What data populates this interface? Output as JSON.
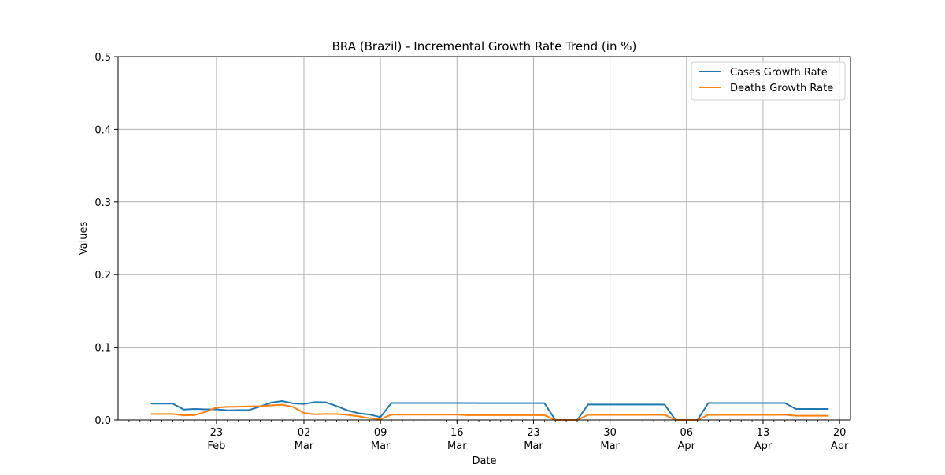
{
  "chart_data": {
    "type": "line",
    "title": "BRA (Brazil) - Incremental Growth Rate Trend (in %)",
    "xlabel": "Date",
    "ylabel": "Values",
    "ylim": [
      0,
      0.5
    ],
    "xlim": [
      "2020-02-14",
      "2020-04-21"
    ],
    "y_ticks": [
      "0.0",
      "0.1",
      "0.2",
      "0.3",
      "0.4",
      "0.5"
    ],
    "x_ticks": [
      {
        "date": "2020-02-23",
        "day": "23",
        "month": "Feb"
      },
      {
        "date": "2020-03-02",
        "day": "02",
        "month": "Mar"
      },
      {
        "date": "2020-03-09",
        "day": "09",
        "month": "Mar"
      },
      {
        "date": "2020-03-16",
        "day": "16",
        "month": "Mar"
      },
      {
        "date": "2020-03-23",
        "day": "23",
        "month": "Mar"
      },
      {
        "date": "2020-03-30",
        "day": "30",
        "month": "Mar"
      },
      {
        "date": "2020-04-06",
        "day": "06",
        "month": "Apr"
      },
      {
        "date": "2020-04-13",
        "day": "13",
        "month": "Apr"
      },
      {
        "date": "2020-04-20",
        "day": "20",
        "month": "Apr"
      }
    ],
    "grid": true,
    "legend_position": "top-right",
    "x": [
      "2020-02-17",
      "2020-02-18",
      "2020-02-19",
      "2020-02-20",
      "2020-02-21",
      "2020-02-22",
      "2020-02-23",
      "2020-02-24",
      "2020-02-25",
      "2020-02-26",
      "2020-02-27",
      "2020-02-28",
      "2020-02-29",
      "2020-03-01",
      "2020-03-02",
      "2020-03-03",
      "2020-03-04",
      "2020-03-05",
      "2020-03-06",
      "2020-03-07",
      "2020-03-08",
      "2020-03-09",
      "2020-03-10",
      "2020-03-11",
      "2020-03-12",
      "2020-03-13",
      "2020-03-14",
      "2020-03-15",
      "2020-03-16",
      "2020-03-17",
      "2020-03-18",
      "2020-03-19",
      "2020-03-20",
      "2020-03-21",
      "2020-03-22",
      "2020-03-23",
      "2020-03-24",
      "2020-03-25",
      "2020-03-26",
      "2020-03-27",
      "2020-03-28",
      "2020-03-29",
      "2020-03-30",
      "2020-03-31",
      "2020-04-01",
      "2020-04-02",
      "2020-04-03",
      "2020-04-04",
      "2020-04-05",
      "2020-04-06",
      "2020-04-07",
      "2020-04-08",
      "2020-04-09",
      "2020-04-10",
      "2020-04-11",
      "2020-04-12",
      "2020-04-13",
      "2020-04-14",
      "2020-04-15",
      "2020-04-16",
      "2020-04-17",
      "2020-04-18",
      "2020-04-19"
    ],
    "series": [
      {
        "name": "Cases Growth Rate",
        "color": "#1f77b4",
        "values": [
          0.0225,
          0.0224,
          0.0224,
          0.0144,
          0.0152,
          0.0146,
          0.0146,
          0.0133,
          0.0135,
          0.0137,
          0.0186,
          0.0238,
          0.026,
          0.0228,
          0.022,
          0.0245,
          0.0242,
          0.019,
          0.0131,
          0.0092,
          0.0075,
          0.004,
          0.0233,
          0.0233,
          0.0233,
          0.0233,
          0.0233,
          0.0233,
          0.0233,
          0.0233,
          0.0231,
          0.0231,
          0.0231,
          0.0231,
          0.0231,
          0.0231,
          0.0231,
          0.0,
          0.0,
          0.0,
          0.0213,
          0.0213,
          0.0213,
          0.0213,
          0.0213,
          0.0213,
          0.0213,
          0.0211,
          0.0,
          0.0,
          0.0,
          0.0233,
          0.0233,
          0.0233,
          0.0233,
          0.0233,
          0.0233,
          0.0233,
          0.0233,
          0.0152,
          0.0152,
          0.0152,
          0.0152
        ]
      },
      {
        "name": "Deaths Growth Rate",
        "color": "#ff7f0e",
        "values": [
          0.0083,
          0.0083,
          0.0082,
          0.0063,
          0.0067,
          0.0112,
          0.0171,
          0.018,
          0.0183,
          0.0186,
          0.019,
          0.02,
          0.021,
          0.018,
          0.0095,
          0.0079,
          0.0082,
          0.0083,
          0.007,
          0.005,
          0.0025,
          0.0012,
          0.0073,
          0.0073,
          0.0073,
          0.0073,
          0.0073,
          0.0073,
          0.0073,
          0.0066,
          0.0066,
          0.0066,
          0.0066,
          0.0066,
          0.0066,
          0.0066,
          0.0066,
          0.0,
          0.0,
          0.0,
          0.0071,
          0.0071,
          0.0071,
          0.0071,
          0.0071,
          0.0071,
          0.0071,
          0.0071,
          0.0,
          0.0,
          0.0,
          0.0071,
          0.0071,
          0.0071,
          0.0071,
          0.0071,
          0.0071,
          0.0071,
          0.0071,
          0.0058,
          0.0058,
          0.0058,
          0.0058
        ]
      }
    ]
  }
}
